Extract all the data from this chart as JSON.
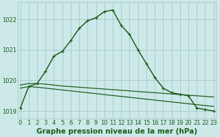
{
  "title": "Graphe pression niveau de la mer (hPa)",
  "bg_color": "#cce8e8",
  "grid_color": "#aacccc",
  "line_color": "#1a5c1a",
  "x_labels": [
    "0",
    "1",
    "2",
    "3",
    "4",
    "5",
    "6",
    "7",
    "8",
    "9",
    "10",
    "11",
    "12",
    "13",
    "14",
    "15",
    "16",
    "17",
    "18",
    "19",
    "20",
    "21",
    "22",
    "23"
  ],
  "series1": [
    1019.1,
    1019.8,
    1019.9,
    1020.3,
    1020.8,
    1020.95,
    1021.3,
    1021.7,
    1021.95,
    1022.05,
    1022.25,
    1022.3,
    1021.8,
    1021.5,
    1021.0,
    1020.55,
    1020.1,
    1019.75,
    1019.6,
    1019.55,
    1019.5,
    1019.1,
    1019.05,
    1019.0
  ],
  "series2": [
    1019.85,
    1019.9,
    1019.9,
    1019.88,
    1019.85,
    1019.82,
    1019.8,
    1019.78,
    1019.76,
    1019.74,
    1019.72,
    1019.7,
    1019.68,
    1019.66,
    1019.64,
    1019.62,
    1019.6,
    1019.58,
    1019.56,
    1019.54,
    1019.52,
    1019.5,
    1019.48,
    1019.46
  ],
  "series3": [
    1019.75,
    1019.8,
    1019.78,
    1019.75,
    1019.72,
    1019.69,
    1019.66,
    1019.63,
    1019.6,
    1019.57,
    1019.54,
    1019.51,
    1019.48,
    1019.45,
    1019.42,
    1019.39,
    1019.36,
    1019.33,
    1019.3,
    1019.27,
    1019.24,
    1019.21,
    1019.18,
    1019.15
  ],
  "ylim": [
    1018.75,
    1022.55
  ],
  "yticks": [
    1019,
    1020,
    1021,
    1022
  ],
  "title_fontsize": 7.5,
  "tick_fontsize": 6.0
}
